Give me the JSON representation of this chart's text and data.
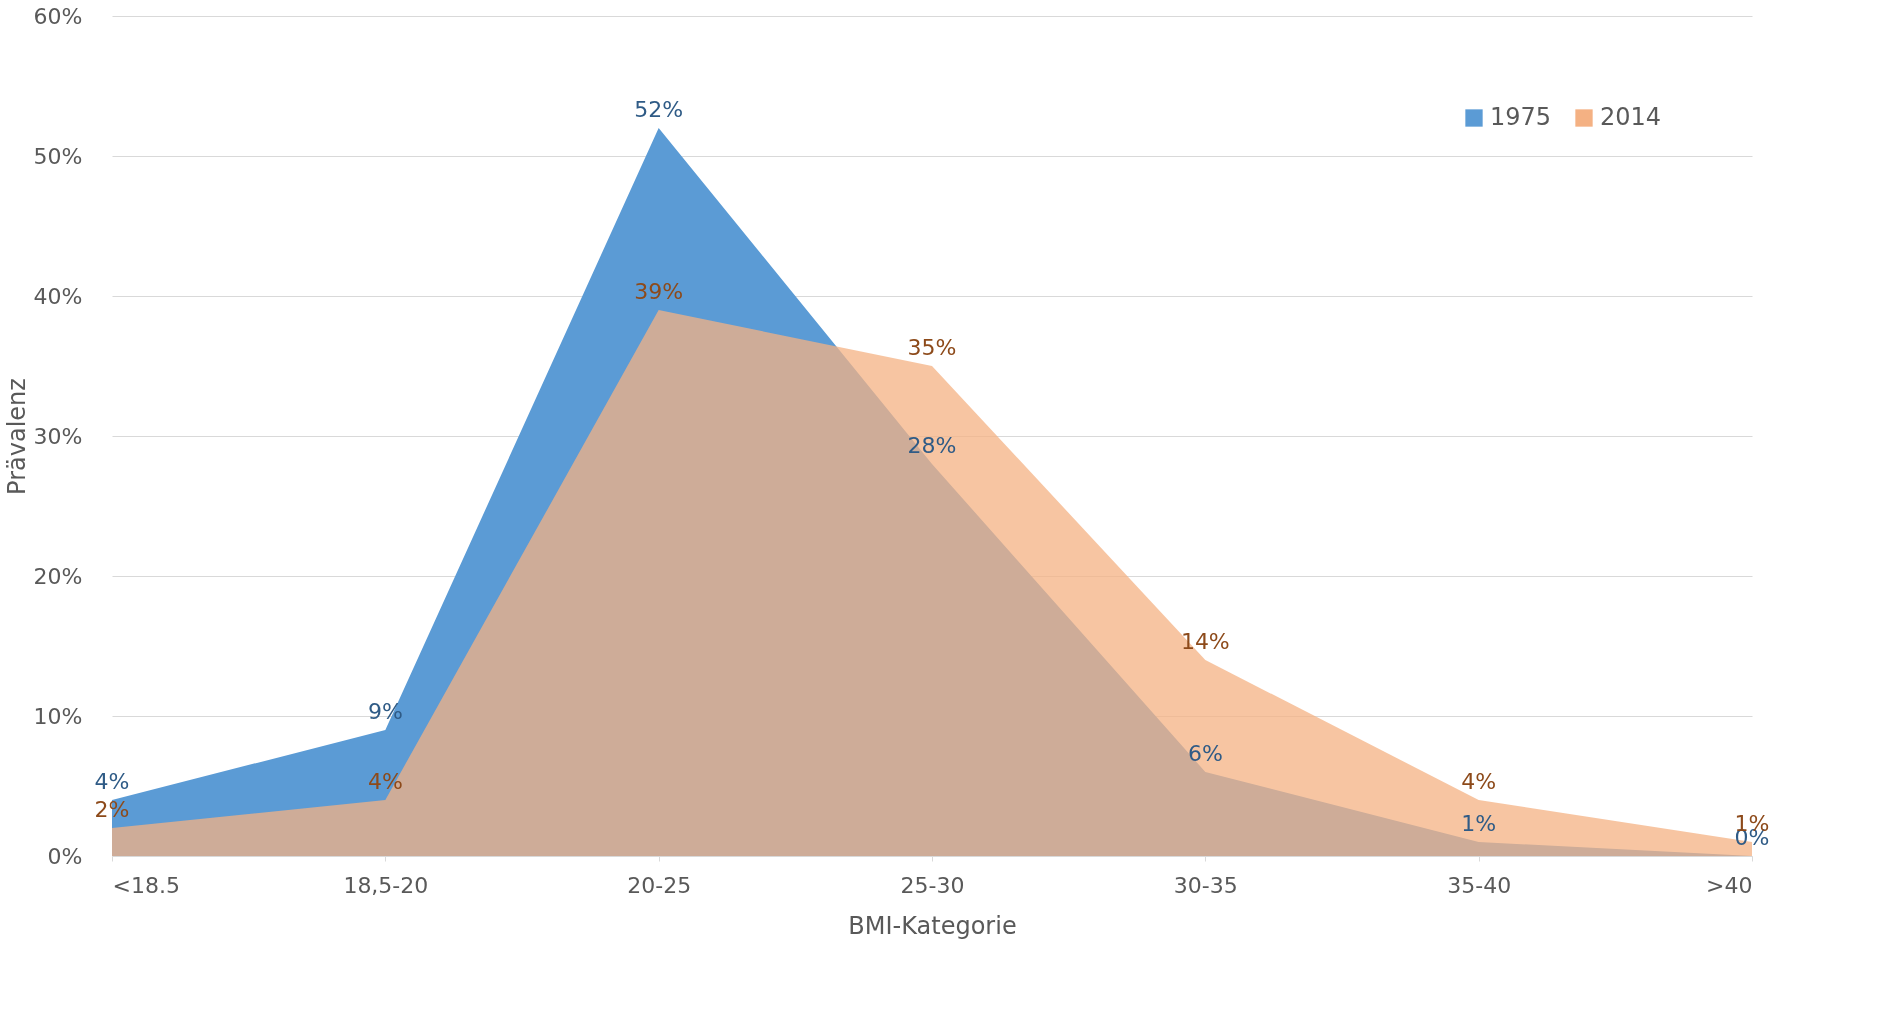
{
  "chart_data": {
    "type": "area",
    "xlabel": "BMI-Kategorie",
    "ylabel": "Prävalenz",
    "categories": [
      "<18.5",
      "18,5-20",
      "20-25",
      "25-30",
      "30-35",
      "35-40",
      ">40"
    ],
    "series": [
      {
        "name": "1975",
        "color": "#5b9bd5",
        "values": [
          4,
          9,
          52,
          28,
          6,
          1,
          0
        ],
        "value_labels": [
          "4%",
          "9%",
          "52%",
          "28%",
          "6%",
          "1%",
          "0%"
        ]
      },
      {
        "name": "2014",
        "color": "#f4b183",
        "values": [
          2,
          4,
          39,
          35,
          14,
          4,
          1
        ],
        "value_labels": [
          "2%",
          "4%",
          "39%",
          "35%",
          "14%",
          "4%",
          "1%"
        ]
      }
    ],
    "ylim": [
      0,
      60
    ],
    "yticks": [
      {
        "value": 0,
        "label": "0%"
      },
      {
        "value": 10,
        "label": "10%"
      },
      {
        "value": 20,
        "label": "20%"
      },
      {
        "value": 30,
        "label": "30%"
      },
      {
        "value": 40,
        "label": "40%"
      },
      {
        "value": 50,
        "label": "50%"
      },
      {
        "value": 60,
        "label": "60%"
      }
    ],
    "grid": "y",
    "legend": "top right"
  }
}
